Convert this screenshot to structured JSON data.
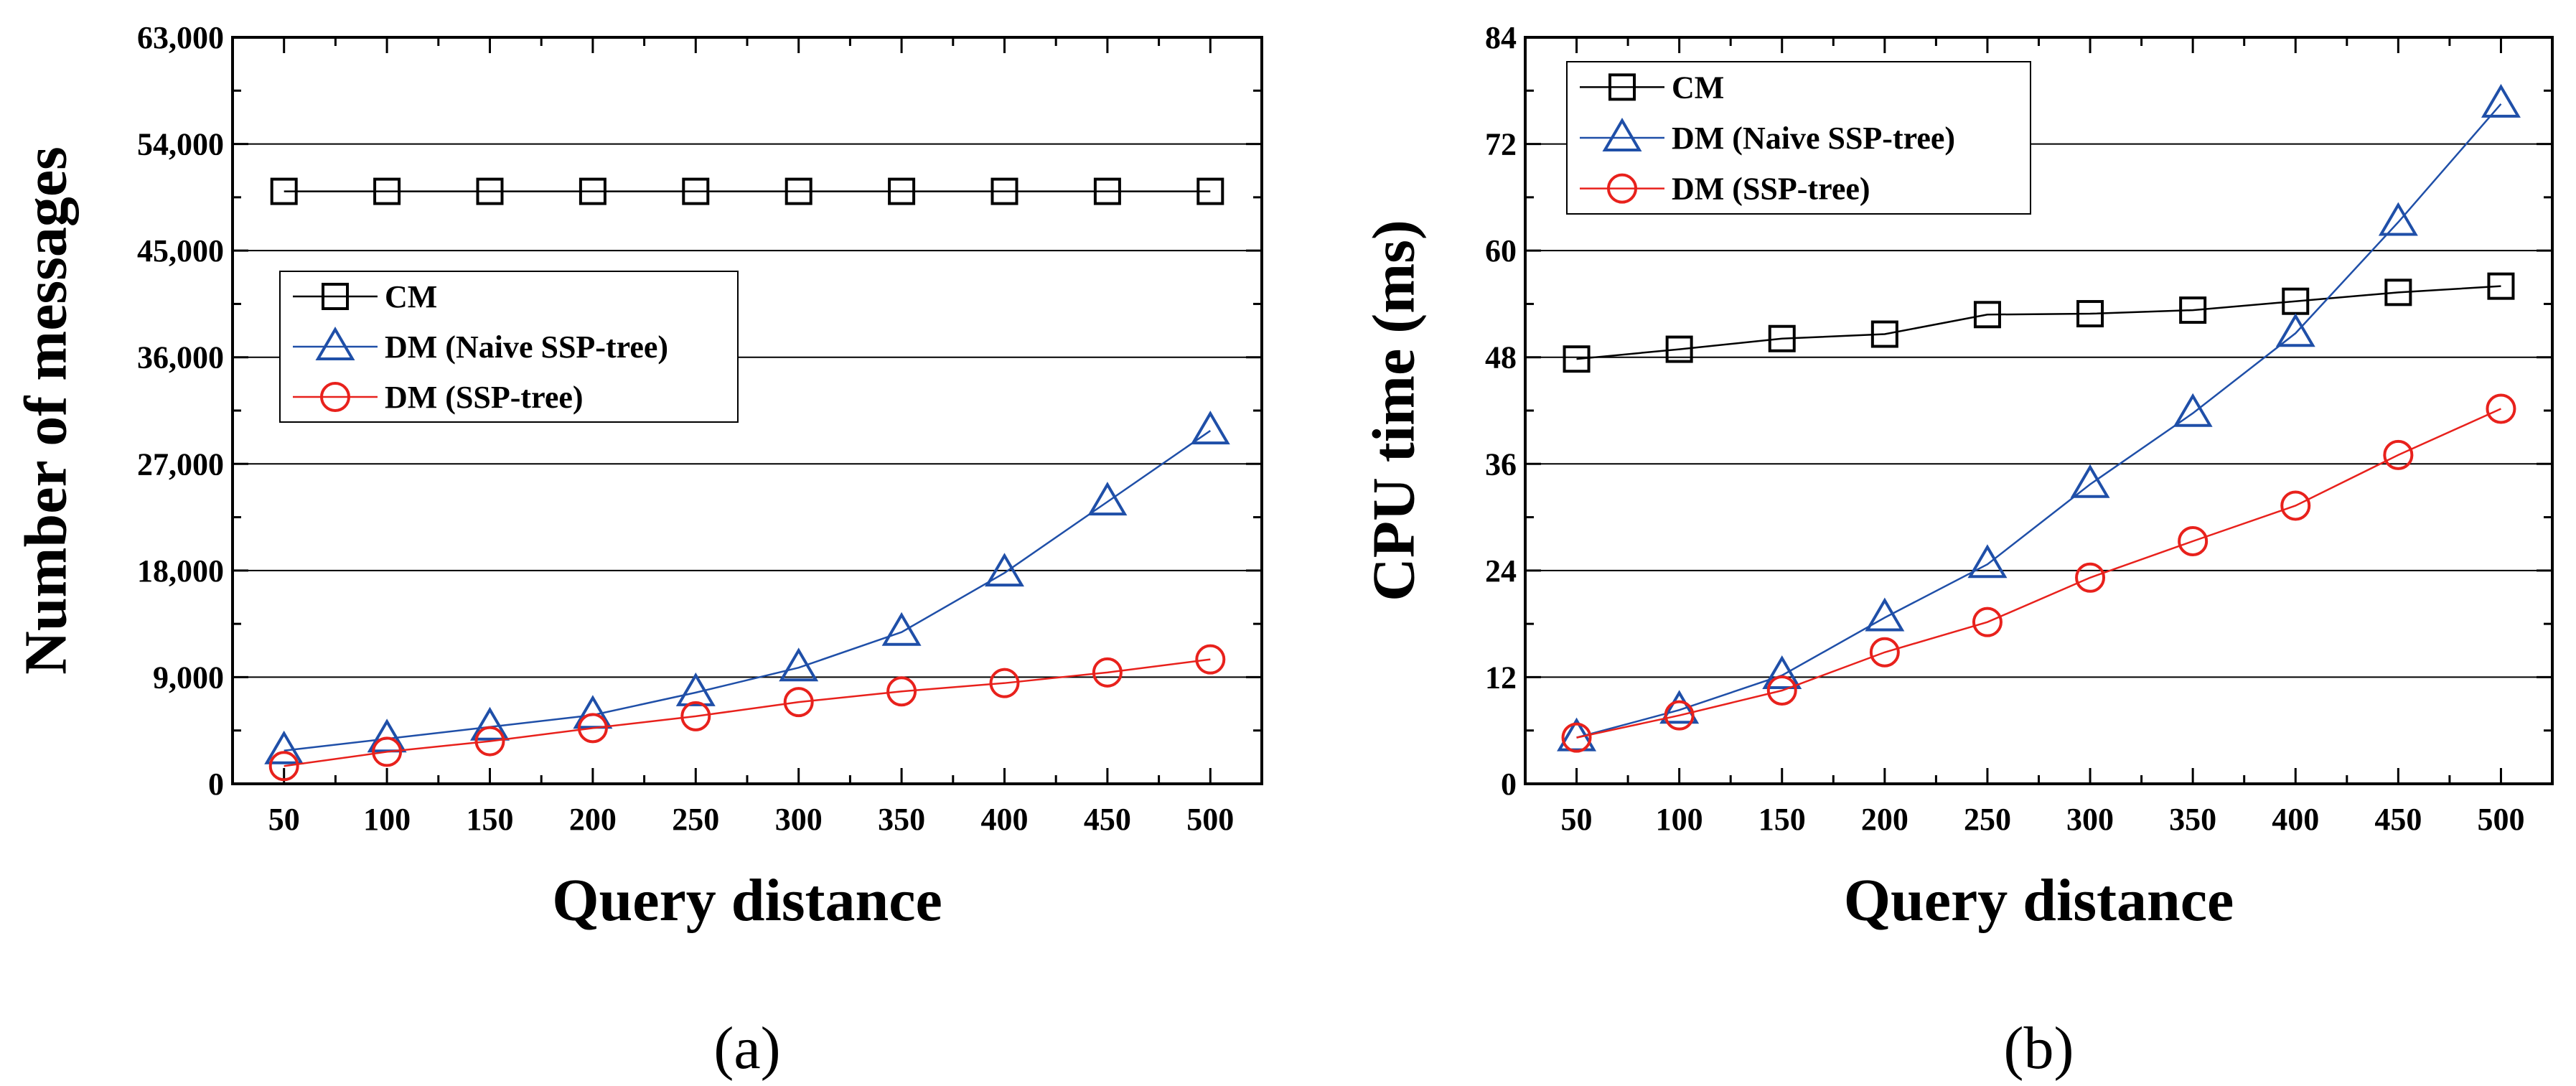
{
  "chart_data": [
    {
      "type": "line",
      "title": "",
      "xlabel": "Query distance",
      "ylabel": "Number of messages",
      "panel_label": "(a)",
      "x": [
        50,
        100,
        150,
        200,
        250,
        300,
        350,
        400,
        450,
        500
      ],
      "xlim": [
        25,
        525
      ],
      "ylim": [
        0,
        63000
      ],
      "x_ticks": [
        50,
        100,
        150,
        200,
        250,
        300,
        350,
        400,
        450,
        500
      ],
      "x_tick_labels": [
        "50",
        "100",
        "150",
        "200",
        "250",
        "300",
        "350",
        "400",
        "450",
        "500"
      ],
      "y_ticks": [
        0,
        9000,
        18000,
        27000,
        36000,
        45000,
        54000,
        63000
      ],
      "y_tick_labels": [
        "0",
        "9,000",
        "18,000",
        "27,000",
        "36,000",
        "45,000",
        "54,000",
        "63,000"
      ],
      "grid": true,
      "legend_position": "center-left",
      "series": [
        {
          "name": "CM",
          "marker": "square",
          "color": "#000000",
          "values": [
            50000,
            50000,
            50000,
            50000,
            50000,
            50000,
            50000,
            50000,
            50000,
            50000
          ]
        },
        {
          "name": "DM (Naive SSP-tree)",
          "marker": "triangle",
          "color": "#1f4fa8",
          "values": [
            2800,
            3800,
            4800,
            5800,
            7700,
            9800,
            12800,
            17800,
            23800,
            29800
          ]
        },
        {
          "name": "DM (SSP-tree)",
          "marker": "circle",
          "color": "#e8211c",
          "values": [
            1500,
            2700,
            3600,
            4700,
            5700,
            6900,
            7800,
            8500,
            9400,
            10500
          ]
        }
      ]
    },
    {
      "type": "line",
      "title": "",
      "xlabel": "Query distance",
      "ylabel": "CPU time (ms)",
      "panel_label": "(b)",
      "x": [
        50,
        100,
        150,
        200,
        250,
        300,
        350,
        400,
        450,
        500
      ],
      "xlim": [
        25,
        525
      ],
      "ylim": [
        0,
        84
      ],
      "x_ticks": [
        50,
        100,
        150,
        200,
        250,
        300,
        350,
        400,
        450,
        500
      ],
      "x_tick_labels": [
        "50",
        "100",
        "150",
        "200",
        "250",
        "300",
        "350",
        "400",
        "450",
        "500"
      ],
      "y_ticks": [
        0,
        12,
        24,
        36,
        48,
        60,
        72,
        84
      ],
      "y_tick_labels": [
        "0",
        "12",
        "24",
        "36",
        "48",
        "60",
        "72",
        "84"
      ],
      "grid": true,
      "legend_position": "top-left",
      "series": [
        {
          "name": "CM",
          "marker": "square",
          "color": "#000000",
          "values": [
            47.8,
            48.9,
            50.1,
            50.6,
            52.8,
            52.9,
            53.3,
            54.3,
            55.3,
            56.0
          ]
        },
        {
          "name": "DM (Naive SSP-tree)",
          "marker": "triangle",
          "color": "#1f4fa8",
          "values": [
            5.2,
            8.3,
            12.2,
            18.7,
            24.7,
            33.7,
            41.7,
            50.7,
            63.2,
            76.5
          ]
        },
        {
          "name": "DM (SSP-tree)",
          "marker": "circle",
          "color": "#e8211c",
          "values": [
            5.2,
            7.7,
            10.5,
            14.8,
            18.2,
            23.2,
            27.3,
            31.3,
            37.0,
            42.2
          ]
        }
      ]
    }
  ]
}
